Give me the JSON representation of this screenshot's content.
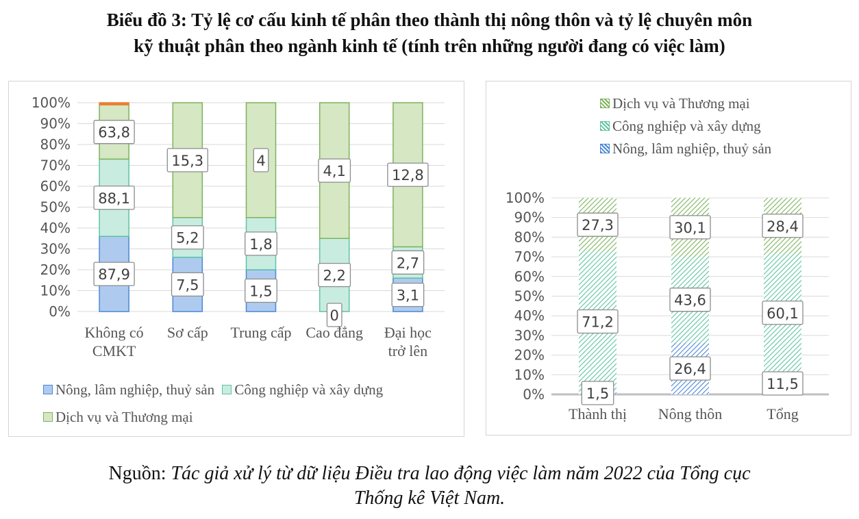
{
  "title_line1": "Biểu đồ 3: Tỷ lệ cơ cấu kinh tế phân theo thành thị nông thôn và tỷ lệ chuyên môn",
  "title_line2": "kỹ thuật phân theo ngành kinh tế (tính trên những người đang có việc làm)",
  "source_prefix": "Nguồn:",
  "source_line1": "Tác giả xử lý từ dữ liệu Điều tra lao động việc làm năm 2022 của Tổng cục",
  "source_line2": "Thống kê Việt Nam.",
  "colors": {
    "agri": "#aecbef",
    "agri_stroke": "#4a86d6",
    "industry": "#c9ece1",
    "industry_stroke": "#5dc3a2",
    "service": "#d6e7c4",
    "service_stroke": "#7cb35a",
    "other": "#ed7d31"
  },
  "chart_data": [
    {
      "type": "bar",
      "stacked": true,
      "percent": true,
      "categories": [
        [
          "Không có",
          "CMKT"
        ],
        [
          "Sơ cấp"
        ],
        [
          "Trung cấp"
        ],
        [
          "Cao đẳng"
        ],
        [
          "Đại học",
          "trở lên"
        ]
      ],
      "series": [
        {
          "name": "Nông, lâm nghiệp, thuỷ sản",
          "shares": [
            36,
            26,
            20,
            0,
            16
          ],
          "labels": [
            "87,9",
            "7,5",
            "1,5",
            "0",
            "3,1"
          ]
        },
        {
          "name": "Công nghiệp và xây dựng",
          "shares": [
            37,
            19,
            25,
            35,
            15
          ],
          "labels": [
            "88,1",
            "5,2",
            "1,8",
            "2,2",
            "2,7"
          ]
        },
        {
          "name": "Dịch vụ và Thương mại",
          "shares": [
            26,
            55,
            55,
            65,
            69
          ],
          "labels": [
            "63,8",
            "15,3",
            "4",
            "4,1",
            "12,8"
          ]
        },
        {
          "name": "",
          "shares": [
            1,
            0,
            0,
            0,
            0
          ],
          "labels": [
            "",
            "",
            "",
            "",
            ""
          ]
        }
      ],
      "ylim": [
        0,
        100
      ],
      "yticks": [
        "0%",
        "10%",
        "20%",
        "30%",
        "40%",
        "50%",
        "60%",
        "70%",
        "80%",
        "90%",
        "100%"
      ],
      "legend_position": "bottom"
    },
    {
      "type": "bar",
      "stacked": true,
      "percent": true,
      "categories": [
        [
          "Thành thị"
        ],
        [
          "Nông thôn"
        ],
        [
          "Tổng"
        ]
      ],
      "series": [
        {
          "name": "Nông, lâm nghiệp, thuỷ sản",
          "shares": [
            1.5,
            26.4,
            11.5
          ],
          "labels": [
            "1,5",
            "26,4",
            "11,5"
          ]
        },
        {
          "name": "Công nghiệp và xây dựng",
          "shares": [
            71.2,
            43.6,
            60.1
          ],
          "labels": [
            "71,2",
            "43,6",
            "60,1"
          ]
        },
        {
          "name": "Dịch vụ  và Thương mại",
          "shares": [
            27.3,
            30.1,
            28.4
          ],
          "labels": [
            "27,3",
            "30,1",
            "28,4"
          ]
        }
      ],
      "ylim": [
        0,
        100
      ],
      "yticks": [
        "0%",
        "10%",
        "20%",
        "30%",
        "40%",
        "50%",
        "60%",
        "70%",
        "80%",
        "90%",
        "100%"
      ],
      "legend_position": "top"
    }
  ]
}
